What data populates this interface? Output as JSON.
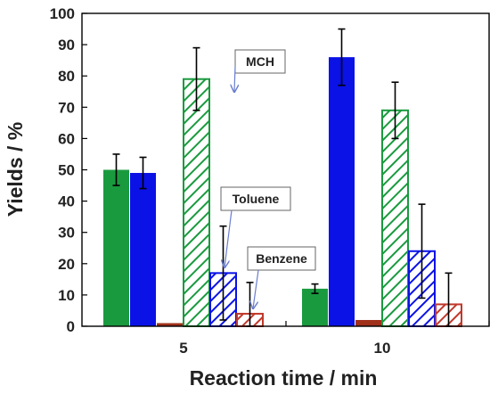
{
  "chart_data": {
    "type": "bar",
    "xlabel": "Reaction time / min",
    "ylabel": "Yields / %",
    "ylim": [
      0,
      100
    ],
    "yticks": [
      0,
      10,
      20,
      30,
      40,
      50,
      60,
      70,
      80,
      90,
      100
    ],
    "grid": false,
    "categories": [
      "5",
      "10"
    ],
    "series": [
      {
        "key": "s1",
        "color": "#1a9a3f",
        "pattern": "solid",
        "values": [
          50,
          12
        ],
        "errors": [
          5,
          1.5
        ]
      },
      {
        "key": "s2",
        "color": "#0a12e6",
        "pattern": "solid",
        "values": [
          49,
          86
        ],
        "errors": [
          5,
          9
        ]
      },
      {
        "key": "s3",
        "color": "#a0301a",
        "pattern": "solid",
        "values": [
          1,
          2
        ],
        "errors": [
          0,
          0
        ]
      },
      {
        "key": "mch",
        "color": "#1a9a3f",
        "pattern": "hatch",
        "values": [
          79,
          69
        ],
        "errors": [
          10,
          9
        ]
      },
      {
        "key": "toluene",
        "color": "#0a12e6",
        "pattern": "hatch",
        "values": [
          17,
          24
        ],
        "errors": [
          15,
          15
        ]
      },
      {
        "key": "benzene",
        "color": "#c0392b",
        "pattern": "hatch",
        "values": [
          4,
          7
        ],
        "errors": [
          10,
          10
        ]
      }
    ],
    "annotations": [
      {
        "text": "MCH",
        "series": "mch"
      },
      {
        "text": "Toluene",
        "series": "toluene"
      },
      {
        "text": "Benzene",
        "series": "benzene"
      }
    ]
  }
}
